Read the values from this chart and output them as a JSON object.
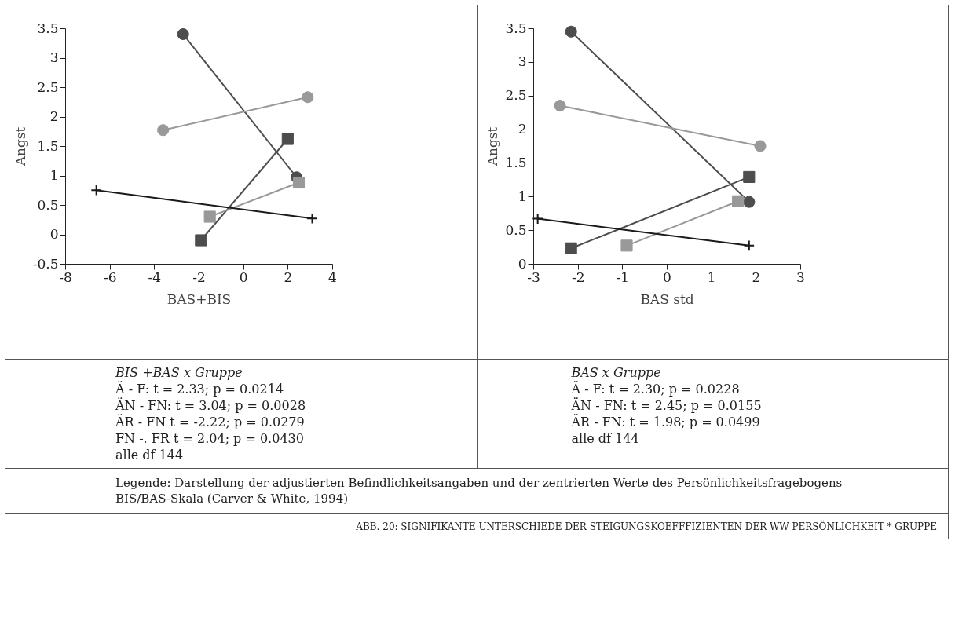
{
  "chart_data": [
    {
      "type": "line",
      "xlabel": "BAS+BIS",
      "ylabel": "Angst",
      "xlim": [
        -8,
        4
      ],
      "xticks": [
        -8,
        -6,
        -4,
        -2,
        0,
        2,
        4
      ],
      "ylim": [
        -0.5,
        3.5
      ],
      "yticks": [
        -0.5,
        0,
        0.5,
        1,
        1.5,
        2,
        2.5,
        3,
        3.5
      ],
      "grid": false,
      "legend": false,
      "series": [
        {
          "color": "#4d4d4d",
          "marker": "circle",
          "x": [
            -2.7,
            2.4
          ],
          "values": [
            3.4,
            0.97
          ]
        },
        {
          "color": "#999999",
          "marker": "circle",
          "x": [
            -3.6,
            2.9
          ],
          "values": [
            1.77,
            2.33
          ]
        },
        {
          "color": "#4d4d4d",
          "marker": "square",
          "x": [
            -1.9,
            2.0
          ],
          "values": [
            -0.1,
            1.62
          ]
        },
        {
          "color": "#999999",
          "marker": "square",
          "x": [
            -1.5,
            2.5
          ],
          "values": [
            0.3,
            0.88
          ]
        },
        {
          "color": "#1a1a1a",
          "marker": "cross",
          "x": [
            -6.6,
            3.1
          ],
          "values": [
            0.75,
            0.27
          ]
        }
      ],
      "annotations": [
        "BIS +BAS x Gruppe",
        "Ä - F:     t = 2.33; p = 0.0214",
        "ÄN - FN: t = 3.04; p = 0.0028",
        "ÄR - FN t = -2.22; p = 0.0279",
        "FN -. FR t = 2.04; p = 0.0430",
        "alle df 144"
      ]
    },
    {
      "type": "line",
      "xlabel": "BAS std",
      "ylabel": "Angst",
      "xlim": [
        -3,
        3
      ],
      "xticks": [
        -3,
        -2,
        -1,
        0,
        1,
        2,
        3
      ],
      "ylim": [
        0,
        3.5
      ],
      "yticks": [
        0,
        0.5,
        1,
        1.5,
        2,
        2.5,
        3,
        3.5
      ],
      "grid": false,
      "legend": false,
      "series": [
        {
          "color": "#4d4d4d",
          "marker": "circle",
          "x": [
            -2.15,
            1.85
          ],
          "values": [
            3.45,
            0.92
          ]
        },
        {
          "color": "#999999",
          "marker": "circle",
          "x": [
            -2.4,
            2.1
          ],
          "values": [
            2.35,
            1.75
          ]
        },
        {
          "color": "#4d4d4d",
          "marker": "square",
          "x": [
            -2.15,
            1.85
          ],
          "values": [
            0.23,
            1.29
          ]
        },
        {
          "color": "#999999",
          "marker": "square",
          "x": [
            -0.9,
            1.6
          ],
          "values": [
            0.27,
            0.93
          ]
        },
        {
          "color": "#1a1a1a",
          "marker": "cross",
          "x": [
            -2.9,
            1.85
          ],
          "values": [
            0.67,
            0.27
          ]
        }
      ],
      "annotations": [
        "BAS x Gruppe",
        "Ä - F:     t = 2.30; p = 0.0228",
        "ÄN - FN: t = 2.45; p = 0.0155",
        "ÄR - FN: t = 1.98; p = 0.0499",
        "alle df 144"
      ]
    },
    {
      "type": "other",
      "annotations": [
        "Legende: Darstellung der adjustierten Befindlichkeitsangaben und der zentrierten Werte des Persönlichkeitsfragebogens BIS/BAS-Skala (Carver & White, 1994)",
        "ABB. 20: SIGNIFIKANTE UNTERSCHIEDE DER STEIGUNGSKOEFFFIZIENTEN DER WW PERSÖNLICHKEIT * GRUPPE"
      ]
    }
  ]
}
